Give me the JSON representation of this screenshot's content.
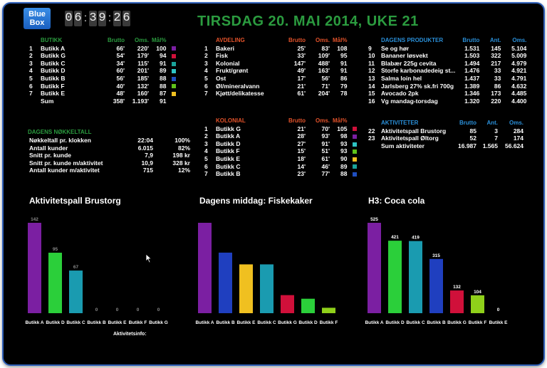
{
  "logo": {
    "line1": "Blue",
    "line2": "Box"
  },
  "clock": [
    "0",
    "6",
    ":",
    "3",
    "9",
    ":",
    "2",
    "6"
  ],
  "date": "TIRSDAG 20. MAI 2014, UKE 21",
  "butikk": {
    "headers": [
      "BUTIKK",
      "Brutto",
      "Oms.",
      "Mål%"
    ],
    "rows": [
      {
        "n": "1",
        "name": "Butikk A",
        "brutto": "66'",
        "oms": "220'",
        "mal": "100",
        "color": "#7b1fa2"
      },
      {
        "n": "2",
        "name": "Butikk G",
        "brutto": "54'",
        "oms": "179'",
        "mal": "94",
        "color": "#d0103a"
      },
      {
        "n": "3",
        "name": "Butikk C",
        "brutto": "34'",
        "oms": "115'",
        "mal": "91",
        "color": "#1aa39a"
      },
      {
        "n": "4",
        "name": "Butikk D",
        "brutto": "60'",
        "oms": "201'",
        "mal": "89",
        "color": "#2ec4c4"
      },
      {
        "n": "5",
        "name": "Butikk B",
        "brutto": "56'",
        "oms": "185'",
        "mal": "88",
        "color": "#1f4fc0"
      },
      {
        "n": "6",
        "name": "Butikk F",
        "brutto": "40'",
        "oms": "132'",
        "mal": "88",
        "color": "#5fc21a"
      },
      {
        "n": "7",
        "name": "Butikk E",
        "brutto": "48'",
        "oms": "160'",
        "mal": "87",
        "color": "#f0c020"
      }
    ],
    "sum": {
      "label": "Sum",
      "brutto": "358'",
      "oms": "1.193'",
      "mal": "91"
    }
  },
  "nokkeltall": {
    "title": "DAGENS NØKKELTALL",
    "rows": [
      {
        "label": "Nøkkeltall pr. klokken",
        "v1": "22:04",
        "v2": "100%"
      },
      {
        "label": "Antall kunder",
        "v1": "6.015",
        "v2": "82%"
      },
      {
        "label": "Snitt pr. kunde",
        "v1": "7,9",
        "v2": "198 kr"
      },
      {
        "label": "Snitt pr. kunde m/aktivitet",
        "v1": "10,9",
        "v2": "328 kr"
      },
      {
        "label": "Antall kunder m/aktivitet",
        "v1": "715",
        "v2": "12%"
      }
    ]
  },
  "avdeling": {
    "headers": [
      "AVDELING",
      "Brutto",
      "Oms.",
      "Mål%"
    ],
    "rows": [
      {
        "n": "1",
        "name": "Bakeri",
        "brutto": "25'",
        "oms": "83'",
        "mal": "108"
      },
      {
        "n": "2",
        "name": "Fisk",
        "brutto": "33'",
        "oms": "109'",
        "mal": "95"
      },
      {
        "n": "3",
        "name": "Kolonial",
        "brutto": "147'",
        "oms": "488'",
        "mal": "91"
      },
      {
        "n": "4",
        "name": "Frukt/grønt",
        "brutto": "49'",
        "oms": "163'",
        "mal": "91"
      },
      {
        "n": "5",
        "name": "Ost",
        "brutto": "17'",
        "oms": "56'",
        "mal": "86"
      },
      {
        "n": "6",
        "name": "Øl/mineralvann",
        "brutto": "21'",
        "oms": "71'",
        "mal": "79"
      },
      {
        "n": "7",
        "name": "Kjøtt/delikatesse",
        "brutto": "61'",
        "oms": "204'",
        "mal": "78"
      }
    ]
  },
  "kolonial": {
    "headers": [
      "KOLONIAL",
      "Brutto",
      "Oms.",
      "Mål%"
    ],
    "rows": [
      {
        "n": "1",
        "name": "Butikk G",
        "brutto": "21'",
        "oms": "70'",
        "mal": "105",
        "color": "#d0103a"
      },
      {
        "n": "2",
        "name": "Butikk A",
        "brutto": "28'",
        "oms": "93'",
        "mal": "98",
        "color": "#7b1fa2"
      },
      {
        "n": "3",
        "name": "Butikk D",
        "brutto": "27'",
        "oms": "91'",
        "mal": "93",
        "color": "#2ec4c4"
      },
      {
        "n": "4",
        "name": "Butikk F",
        "brutto": "15'",
        "oms": "51'",
        "mal": "93",
        "color": "#5fc21a"
      },
      {
        "n": "5",
        "name": "Butikk E",
        "brutto": "18'",
        "oms": "61'",
        "mal": "90",
        "color": "#f0c020"
      },
      {
        "n": "6",
        "name": "Butikk C",
        "brutto": "14'",
        "oms": "46'",
        "mal": "89",
        "color": "#1aa39a"
      },
      {
        "n": "7",
        "name": "Butikk B",
        "brutto": "23'",
        "oms": "77'",
        "mal": "88",
        "color": "#1f4fc0"
      }
    ]
  },
  "produkter": {
    "headers": [
      "DAGENS PRODUKTER",
      "Brutto",
      "Ant.",
      "Oms."
    ],
    "rows": [
      {
        "n": "9",
        "name": "Se og hør",
        "brutto": "1.531",
        "ant": "145",
        "oms": "5.104"
      },
      {
        "n": "10",
        "name": "Bananer løsvekt",
        "brutto": "1.503",
        "ant": "322",
        "oms": "5.009"
      },
      {
        "n": "11",
        "name": "Blabær 225g cevita",
        "brutto": "1.494",
        "ant": "217",
        "oms": "4.979"
      },
      {
        "n": "12",
        "name": "Storfe karbonadedeig st...",
        "brutto": "1.476",
        "ant": "33",
        "oms": "4.921"
      },
      {
        "n": "13",
        "name": "Salma loin hel",
        "brutto": "1.437",
        "ant": "33",
        "oms": "4.791"
      },
      {
        "n": "14",
        "name": "Jarlsberg 27% sk.fri 700g",
        "brutto": "1.389",
        "ant": "86",
        "oms": "4.632"
      },
      {
        "n": "15",
        "name": "Avocado 2pk",
        "brutto": "1.346",
        "ant": "173",
        "oms": "4.485"
      },
      {
        "n": "16",
        "name": "Vg mandag-torsdag",
        "brutto": "1.320",
        "ant": "220",
        "oms": "4.400"
      }
    ]
  },
  "aktiviteter": {
    "headers": [
      "AKTIVITETER",
      "Brutto",
      "Ant.",
      "Oms."
    ],
    "rows": [
      {
        "n": "22",
        "name": "Aktivitetspall Brustorg",
        "brutto": "85",
        "ant": "3",
        "oms": "284"
      },
      {
        "n": "23",
        "name": "Aktivitetspall Øltorg",
        "brutto": "52",
        "ant": "7",
        "oms": "174"
      }
    ],
    "sum": {
      "label": "Sum aktiviteter",
      "brutto": "16.987",
      "ant": "1.565",
      "oms": "56.624"
    }
  },
  "chart_data": [
    {
      "type": "bar",
      "title": "Aktivitetspall Brustorg",
      "categories": [
        "Butikk A",
        "Butikk D",
        "Butikk C",
        "Butikk B",
        "Butikk E",
        "Butikk F",
        "Butikk G"
      ],
      "values": [
        142,
        95,
        67,
        0,
        0,
        0,
        0
      ],
      "labels": [
        "142",
        "95",
        "67",
        "0",
        "0",
        "0",
        "0"
      ],
      "colors": [
        "#7b1fa2",
        "#2bcf3a",
        "#1a9bb0",
        "#1f3fbf",
        "#f0c020",
        "#5fc21a",
        "#d0103a"
      ],
      "ylim": [
        0,
        142
      ],
      "caption": "Aktivitetsinfo:"
    },
    {
      "type": "bar",
      "title": "Dagens middag: Fiskekaker",
      "categories": [
        "Butikk A",
        "Butikk B",
        "Butikk E",
        "Butikk C",
        "Butikk G",
        "Butikk D",
        "Butikk F"
      ],
      "values": [
        100,
        67,
        54,
        54,
        20,
        16,
        6
      ],
      "labels": [
        "",
        "",
        "",
        "",
        "",
        "",
        ""
      ],
      "colors": [
        "#7b1fa2",
        "#1f3fbf",
        "#f0c020",
        "#1a9bb0",
        "#d0103a",
        "#2bcf3a",
        "#8fd01a"
      ],
      "ylim": [
        0,
        100
      ]
    },
    {
      "type": "bar",
      "title": "H3: Coca cola",
      "categories": [
        "Butikk A",
        "Butikk D",
        "Butikk C",
        "Butikk B",
        "Butikk G",
        "Butikk F",
        "Butikk E"
      ],
      "values": [
        525,
        421,
        419,
        315,
        132,
        104,
        0
      ],
      "labels": [
        "525",
        "421",
        "419",
        "315",
        "132",
        "104",
        "0"
      ],
      "colors": [
        "#7b1fa2",
        "#2bcf3a",
        "#1a9bb0",
        "#1f3fbf",
        "#d0103a",
        "#8fd01a",
        "#f0c020"
      ],
      "ylim": [
        0,
        525
      ]
    }
  ]
}
